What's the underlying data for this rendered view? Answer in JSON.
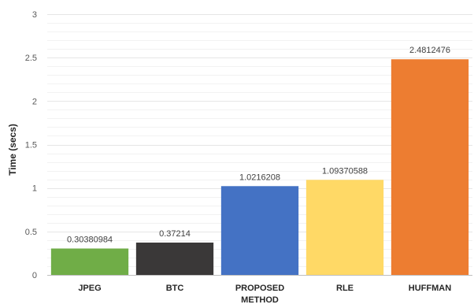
{
  "chart_data": {
    "type": "bar",
    "ylabel": "Time (secs)",
    "xlabel": "",
    "ylim": [
      0,
      3
    ],
    "yticks": [
      "0",
      "0.5",
      "1",
      "1.5",
      "2",
      "2.5",
      "3"
    ],
    "grid": true,
    "categories": [
      [
        "JPEG"
      ],
      [
        "BTC"
      ],
      [
        "PROPOSED",
        "METHOD"
      ],
      [
        "RLE"
      ],
      [
        "HUFFMAN"
      ]
    ],
    "values": [
      0.30380984,
      0.37214,
      1.0216208,
      1.09370588,
      2.4812476
    ],
    "data_labels": [
      "0.30380984",
      "0.37214",
      "1.0216208",
      "1.09370588",
      "2.4812476"
    ],
    "colors": [
      "#70ad47",
      "#3a3838",
      "#4472c4",
      "#ffd966",
      "#ed7d31"
    ]
  }
}
